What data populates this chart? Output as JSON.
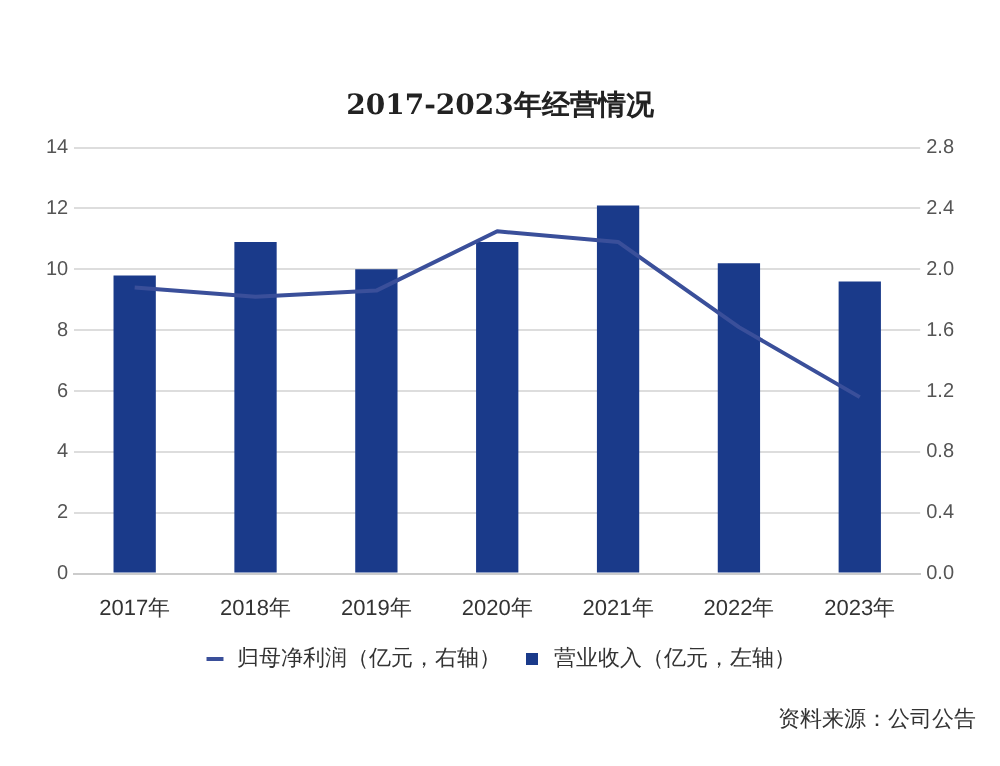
{
  "chart_data": {
    "type": "bar",
    "title": "2017-2023年经营情况",
    "categories": [
      "2017年",
      "2018年",
      "2019年",
      "2020年",
      "2021年",
      "2022年",
      "2023年"
    ],
    "series": [
      {
        "name": "营业收入（亿元，左轴）",
        "color": "#1a3a8a",
        "values": [
          9.8,
          10.9,
          10.0,
          10.9,
          12.1,
          10.2,
          9.6
        ]
      },
      {
        "name": "归母净利润（亿元，右轴）",
        "type": "line",
        "axis": "y2",
        "color": "#3a4f9a",
        "values": [
          1.88,
          1.82,
          1.86,
          2.25,
          2.18,
          1.62,
          1.16
        ]
      }
    ],
    "ylim": [
      0,
      14
    ],
    "yticks": [
      0,
      2,
      4,
      6,
      8,
      10,
      12,
      14
    ],
    "y2lim": [
      0,
      2.8
    ],
    "y2ticks": [
      {
        "value": 0,
        "label": "0.0"
      },
      {
        "value": 0.4,
        "label": "0.4"
      },
      {
        "value": 0.8,
        "label": "0.8"
      },
      {
        "value": 1.2,
        "label": "1.2"
      },
      {
        "value": 1.6,
        "label": "1.6"
      },
      {
        "value": 2.0,
        "label": "2.0"
      },
      {
        "value": 2.4,
        "label": "2.4"
      },
      {
        "value": 2.8,
        "label": "2.8"
      }
    ],
    "grid": "y",
    "legend": "bottom",
    "marker": "none",
    "annotations": [
      "资料来源：公司公告"
    ]
  }
}
